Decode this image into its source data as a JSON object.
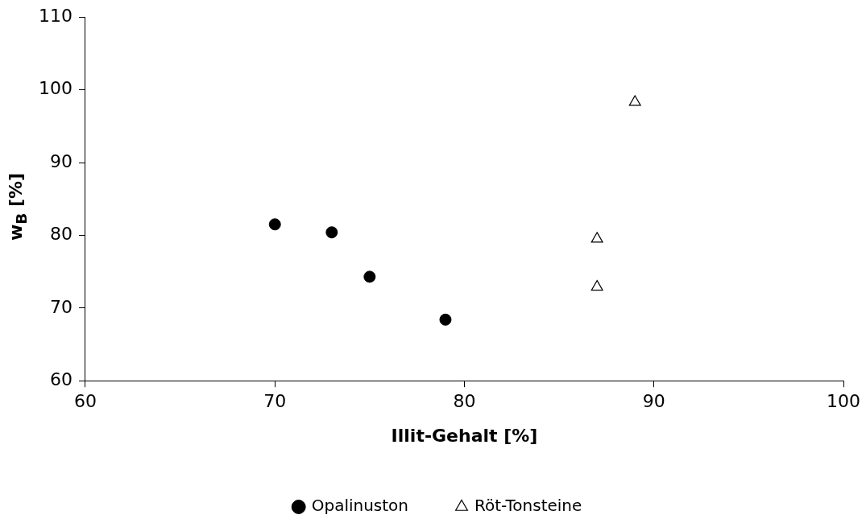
{
  "chart_data": {
    "type": "scatter",
    "xlabel": "Illit-Gehalt [%]",
    "ylabel": "w$_{B}$ [%]",
    "xlim": [
      60,
      100
    ],
    "xticks": [
      60,
      70,
      80,
      90,
      100
    ],
    "ylim": [
      60,
      110
    ],
    "yticks": [
      60,
      70,
      80,
      90,
      100,
      110
    ],
    "grid": false,
    "legend": "bottom",
    "series": [
      {
        "name": "Opalinuston",
        "color": "#000000",
        "marker": "circle",
        "x": [
          70,
          73,
          75,
          79
        ],
        "values": [
          81.5,
          80.4,
          74.3,
          68.4
        ]
      },
      {
        "name": "Röt-Tonsteine",
        "color": "#000000",
        "marker": "triangle",
        "x": [
          87,
          87,
          89
        ],
        "values": [
          79.5,
          72.9,
          98.3
        ]
      }
    ]
  }
}
